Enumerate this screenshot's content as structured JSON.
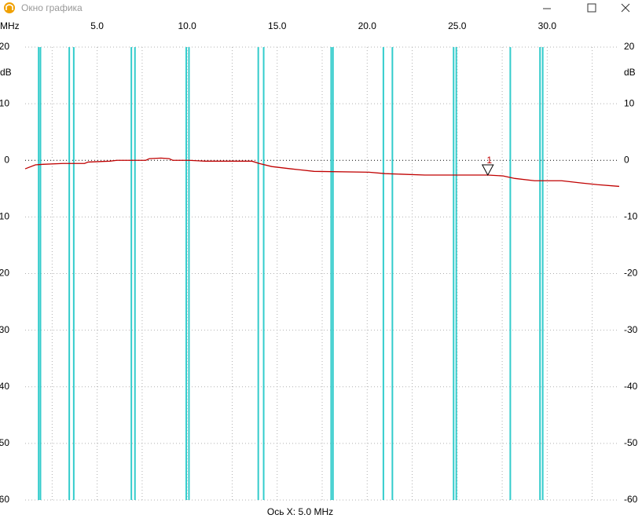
{
  "window": {
    "title": "Окно графика"
  },
  "chart_data": {
    "type": "line",
    "x_unit": "MHz",
    "y_unit": "dB",
    "x_axis_label": "Ось X: 5.0 MHz",
    "xlim": [
      1,
      34
    ],
    "ylim": [
      -60,
      20
    ],
    "xticks": [
      {
        "value": 5,
        "label": "5.0"
      },
      {
        "value": 10,
        "label": "10.0"
      },
      {
        "value": 15,
        "label": "15.0"
      },
      {
        "value": 20,
        "label": "20.0"
      },
      {
        "value": 25,
        "label": "25.0"
      },
      {
        "value": 30,
        "label": "30.0"
      }
    ],
    "xgrid": [
      2.5,
      5,
      7.5,
      10,
      12.5,
      15,
      17.5,
      20,
      22.5,
      25,
      27.5,
      30,
      32.5
    ],
    "yticks": [
      20,
      10,
      0,
      -10,
      -20,
      -30,
      -40,
      -50,
      -60
    ],
    "grid": true,
    "grid_color": "#b0b0b0",
    "zero_line_color": "#000000",
    "band_lines": [
      1.75,
      1.85,
      3.45,
      3.7,
      6.9,
      7.1,
      9.95,
      10.1,
      13.95,
      14.25,
      18.0,
      18.1,
      20.9,
      21.4,
      24.8,
      24.95,
      27.95,
      29.6,
      29.75
    ],
    "band_color": "#33cccc",
    "x": [
      1.0,
      1.57,
      2.0,
      3.1,
      4.3,
      4.5,
      5.7,
      6.1,
      7.7,
      7.9,
      8.55,
      9.0,
      9.2,
      10.1,
      11.0,
      13.6,
      14.0,
      14.7,
      15.75,
      17.05,
      20.1,
      21.0,
      23.2,
      26.7,
      27.55,
      28.2,
      29.3,
      30.8,
      31.9,
      32.8,
      34.0
    ],
    "series": [
      {
        "color": "#c00000",
        "values": [
          -1.5,
          -0.8,
          -0.7,
          -0.55,
          -0.55,
          -0.3,
          -0.15,
          0,
          0,
          0.3,
          0.4,
          0.3,
          0,
          0,
          -0.15,
          -0.15,
          -0.55,
          -1.1,
          -1.5,
          -1.95,
          -2.1,
          -2.35,
          -2.6,
          -2.6,
          -2.75,
          -3.2,
          -3.6,
          -3.6,
          -4.0,
          -4.3,
          -4.6
        ]
      }
    ],
    "markers": [
      {
        "label": "1",
        "x": 26.7,
        "y": -2.6
      }
    ]
  }
}
